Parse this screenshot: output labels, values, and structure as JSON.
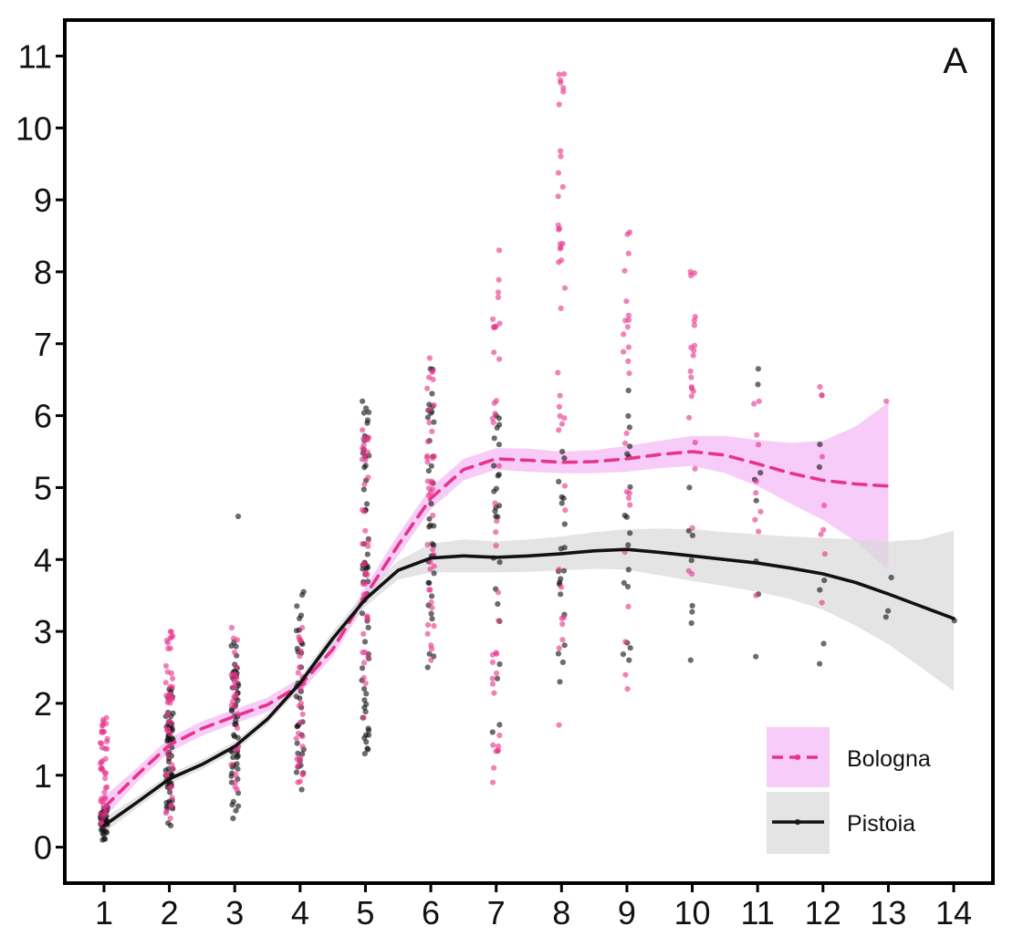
{
  "chart_data": {
    "type": "scatter",
    "panel_label": "A",
    "title": "",
    "xlabel": "",
    "ylabel": "",
    "xlim": [
      0.4,
      14.6
    ],
    "ylim": [
      -0.5,
      11.5
    ],
    "x_ticks": [
      1,
      2,
      3,
      4,
      5,
      6,
      7,
      8,
      9,
      10,
      11,
      12,
      13,
      14
    ],
    "y_ticks": [
      0,
      1,
      2,
      3,
      4,
      5,
      6,
      7,
      8,
      9,
      10,
      11
    ],
    "grid": false,
    "legend_position": "bottom-right",
    "series": [
      {
        "name": "Bologna",
        "color": "#e8338a",
        "band_color": "#ef8fef",
        "line_style": "dashed",
        "points": [
          {
            "x": 1,
            "min": 0.3,
            "max": 1.8,
            "n": 45
          },
          {
            "x": 2,
            "min": 0.4,
            "max": 3.0,
            "n": 45
          },
          {
            "x": 3,
            "min": 0.8,
            "max": 3.05,
            "n": 30
          },
          {
            "x": 4,
            "min": 0.9,
            "max": 3.05,
            "n": 30
          },
          {
            "x": 5,
            "min": 1.8,
            "max": 5.8,
            "n": 40
          },
          {
            "x": 6,
            "min": 2.6,
            "max": 6.8,
            "n": 40
          },
          {
            "x": 7,
            "min": 0.9,
            "max": 8.3,
            "n": 40
          },
          {
            "x": 8,
            "min": 1.7,
            "max": 10.75,
            "n": 40
          },
          {
            "x": 9,
            "min": 2.2,
            "max": 8.55,
            "n": 25
          },
          {
            "x": 10,
            "min": 3.8,
            "max": 8.0,
            "n": 22
          },
          {
            "x": 11,
            "min": 3.5,
            "max": 6.2,
            "n": 10
          },
          {
            "x": 12,
            "min": 3.4,
            "max": 6.4,
            "n": 9
          },
          {
            "x": 13,
            "min": 6.2,
            "max": 6.25,
            "n": 1
          }
        ],
        "smooth": {
          "x": [
            1,
            1.5,
            2,
            2.5,
            3,
            3.5,
            4,
            4.5,
            5,
            5.5,
            6,
            6.5,
            7,
            7.5,
            8,
            8.5,
            9,
            9.5,
            10,
            10.5,
            11,
            11.5,
            12,
            12.5,
            13
          ],
          "y": [
            0.55,
            1.0,
            1.42,
            1.65,
            1.82,
            1.98,
            2.25,
            2.75,
            3.5,
            4.2,
            4.85,
            5.25,
            5.4,
            5.38,
            5.35,
            5.36,
            5.4,
            5.46,
            5.5,
            5.45,
            5.33,
            5.2,
            5.1,
            5.05,
            5.02
          ],
          "lower": [
            0.4,
            0.9,
            1.32,
            1.55,
            1.72,
            1.88,
            2.15,
            2.65,
            3.38,
            4.05,
            4.7,
            5.1,
            5.25,
            5.22,
            5.2,
            5.2,
            5.22,
            5.27,
            5.3,
            5.2,
            5.02,
            4.78,
            4.55,
            4.25,
            3.85
          ],
          "upper": [
            0.7,
            1.1,
            1.52,
            1.75,
            1.92,
            2.08,
            2.35,
            2.85,
            3.62,
            4.35,
            5.0,
            5.4,
            5.55,
            5.54,
            5.5,
            5.52,
            5.58,
            5.65,
            5.72,
            5.72,
            5.66,
            5.62,
            5.65,
            5.85,
            6.18
          ]
        }
      },
      {
        "name": "Pistoia",
        "color": "#111111",
        "band_color": "#d9d9d9",
        "line_style": "solid",
        "points": [
          {
            "x": 1,
            "min": 0.1,
            "max": 0.55,
            "n": 45
          },
          {
            "x": 2,
            "min": 0.3,
            "max": 2.2,
            "n": 60
          },
          {
            "x": 3,
            "min": 0.4,
            "max": 2.85,
            "n": 55
          },
          {
            "x": 3,
            "min": 4.6,
            "max": 4.6,
            "n": 1
          },
          {
            "x": 4,
            "min": 0.8,
            "max": 3.55,
            "n": 35
          },
          {
            "x": 5,
            "min": 1.3,
            "max": 6.2,
            "n": 60
          },
          {
            "x": 6,
            "min": 2.5,
            "max": 6.65,
            "n": 35
          },
          {
            "x": 7,
            "min": 1.6,
            "max": 6.0,
            "n": 25
          },
          {
            "x": 8,
            "min": 2.3,
            "max": 5.5,
            "n": 20
          },
          {
            "x": 9,
            "min": 2.6,
            "max": 6.35,
            "n": 18
          },
          {
            "x": 10,
            "min": 2.6,
            "max": 5.0,
            "n": 8
          },
          {
            "x": 11,
            "min": 2.65,
            "max": 6.65,
            "n": 8
          },
          {
            "x": 12,
            "min": 2.55,
            "max": 5.6,
            "n": 6
          },
          {
            "x": 13,
            "min": 3.2,
            "max": 3.75,
            "n": 3
          },
          {
            "x": 14,
            "min": 3.15,
            "max": 3.15,
            "n": 1
          }
        ],
        "smooth": {
          "x": [
            1,
            1.5,
            2,
            2.5,
            3,
            3.5,
            4,
            4.5,
            5,
            5.5,
            6,
            6.5,
            7,
            7.5,
            8,
            8.5,
            9,
            9.5,
            10,
            10.5,
            11,
            11.5,
            12,
            12.5,
            13,
            13.5,
            14
          ],
          "y": [
            0.3,
            0.62,
            0.95,
            1.15,
            1.4,
            1.78,
            2.28,
            2.9,
            3.45,
            3.85,
            4.02,
            4.05,
            4.03,
            4.05,
            4.08,
            4.12,
            4.14,
            4.1,
            4.05,
            4.0,
            3.95,
            3.88,
            3.8,
            3.68,
            3.52,
            3.35,
            3.18
          ],
          "lower": [
            0.2,
            0.54,
            0.88,
            1.08,
            1.33,
            1.71,
            2.2,
            2.8,
            3.35,
            3.72,
            3.82,
            3.82,
            3.82,
            3.83,
            3.85,
            3.87,
            3.86,
            3.78,
            3.7,
            3.63,
            3.55,
            3.45,
            3.3,
            3.08,
            2.82,
            2.5,
            2.17
          ],
          "upper": [
            0.4,
            0.7,
            1.02,
            1.22,
            1.47,
            1.85,
            2.36,
            3.0,
            3.55,
            3.98,
            4.22,
            4.28,
            4.25,
            4.28,
            4.32,
            4.38,
            4.42,
            4.43,
            4.42,
            4.38,
            4.35,
            4.32,
            4.3,
            4.28,
            4.25,
            4.28,
            4.4
          ]
        }
      }
    ]
  }
}
